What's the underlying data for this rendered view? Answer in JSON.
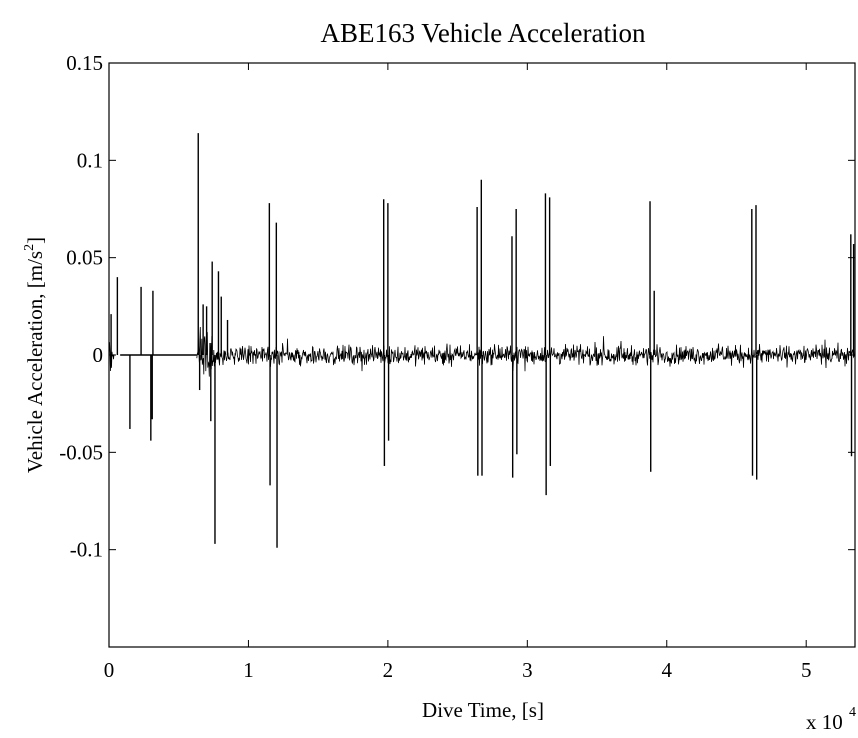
{
  "chart_data": {
    "type": "line",
    "title": "ABE163 Vehicle Acceleration",
    "xlabel": "Dive Time, [s]",
    "ylabel": "Vehicle Acceleration, [m/s",
    "ylabel_superscript": "2",
    "ylabel_suffix": "]",
    "x_multiplier_label": "x 10",
    "x_multiplier_exponent": "4",
    "xlim": [
      0,
      53500
    ],
    "ylim": [
      -0.15,
      0.15
    ],
    "x_ticks": [
      0,
      10000,
      20000,
      30000,
      40000,
      50000
    ],
    "x_tick_labels": [
      "0",
      "1",
      "2",
      "3",
      "4",
      "5"
    ],
    "y_ticks": [
      -0.1,
      -0.05,
      0,
      0.05,
      0.1,
      0.15
    ],
    "y_tick_labels": [
      "-0.1",
      "-0.05",
      "0",
      "0.05",
      "0.1",
      "0.15"
    ],
    "grid": false,
    "series_color": "#000000",
    "flat_segment": {
      "x_start": 800,
      "x_end": 6300,
      "y": 0
    },
    "noise_segments": [
      {
        "x_start": 0,
        "x_end": 400,
        "amplitude": 0.01
      },
      {
        "x_start": 6300,
        "x_end": 7600,
        "amplitude": 0.018
      },
      {
        "x_start": 7600,
        "x_end": 53500,
        "amplitude": 0.007
      }
    ],
    "spikes": [
      {
        "x": 150,
        "y": 0.021
      },
      {
        "x": 600,
        "y": 0.04
      },
      {
        "x": 1500,
        "y": -0.038
      },
      {
        "x": 2300,
        "y": 0.035
      },
      {
        "x": 3000,
        "y": -0.044
      },
      {
        "x": 3150,
        "y": 0.033
      },
      {
        "x": 3100,
        "y": -0.033
      },
      {
        "x": 6400,
        "y": 0.114
      },
      {
        "x": 6500,
        "y": -0.018
      },
      {
        "x": 6750,
        "y": 0.026
      },
      {
        "x": 7000,
        "y": 0.025
      },
      {
        "x": 7300,
        "y": -0.034
      },
      {
        "x": 7400,
        "y": 0.048
      },
      {
        "x": 7600,
        "y": -0.097
      },
      {
        "x": 7850,
        "y": 0.043
      },
      {
        "x": 8050,
        "y": 0.03
      },
      {
        "x": 8500,
        "y": 0.018
      },
      {
        "x": 11500,
        "y": 0.078
      },
      {
        "x": 11550,
        "y": -0.067
      },
      {
        "x": 12000,
        "y": 0.068
      },
      {
        "x": 12050,
        "y": -0.099
      },
      {
        "x": 19700,
        "y": 0.08
      },
      {
        "x": 19750,
        "y": -0.057
      },
      {
        "x": 20000,
        "y": 0.078
      },
      {
        "x": 20050,
        "y": -0.044
      },
      {
        "x": 26400,
        "y": 0.076
      },
      {
        "x": 26450,
        "y": -0.062
      },
      {
        "x": 26700,
        "y": 0.09
      },
      {
        "x": 26750,
        "y": -0.062
      },
      {
        "x": 28900,
        "y": 0.061
      },
      {
        "x": 28950,
        "y": -0.063
      },
      {
        "x": 29200,
        "y": 0.075
      },
      {
        "x": 29250,
        "y": -0.051
      },
      {
        "x": 31300,
        "y": 0.083
      },
      {
        "x": 31350,
        "y": -0.072
      },
      {
        "x": 31600,
        "y": 0.081
      },
      {
        "x": 31650,
        "y": -0.057
      },
      {
        "x": 38800,
        "y": 0.079
      },
      {
        "x": 38850,
        "y": -0.06
      },
      {
        "x": 39100,
        "y": 0.033
      },
      {
        "x": 46100,
        "y": 0.075
      },
      {
        "x": 46150,
        "y": -0.062
      },
      {
        "x": 46400,
        "y": 0.077
      },
      {
        "x": 46450,
        "y": -0.064
      },
      {
        "x": 53200,
        "y": 0.062
      },
      {
        "x": 53250,
        "y": -0.052
      },
      {
        "x": 53400,
        "y": 0.057
      }
    ]
  }
}
